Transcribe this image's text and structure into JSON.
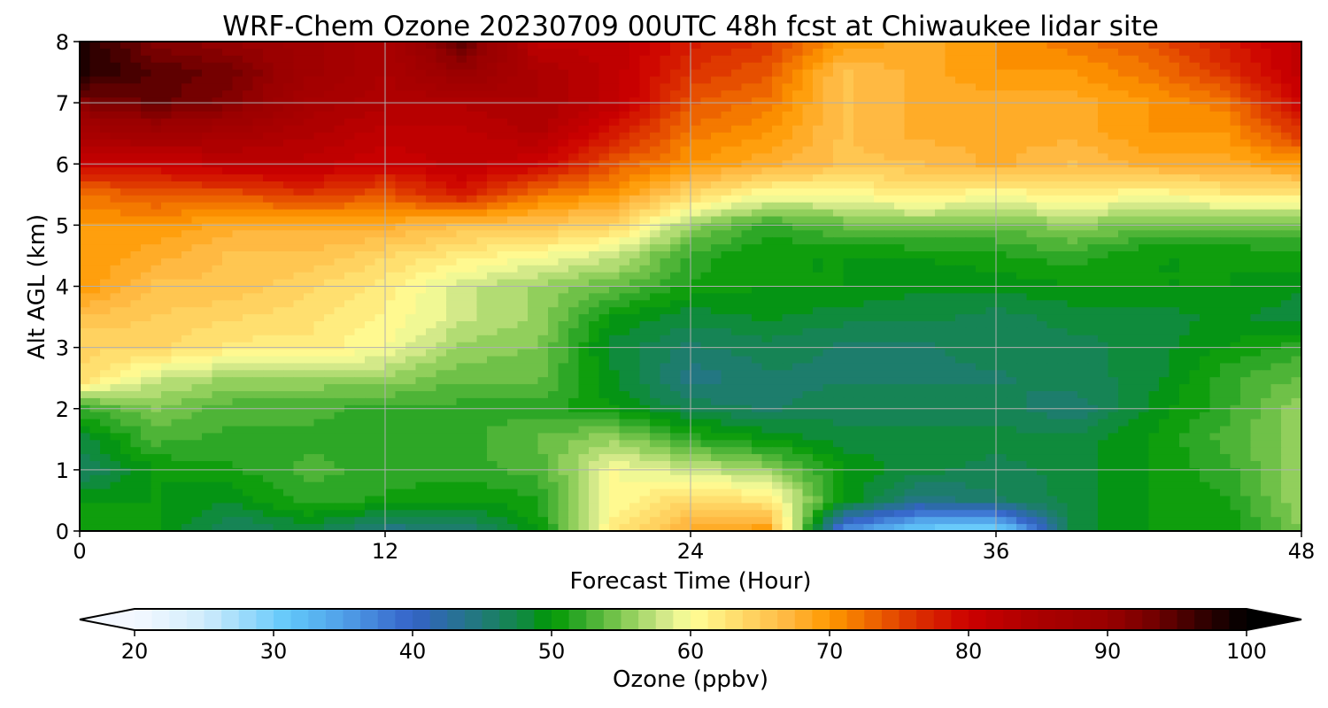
{
  "chart_data": {
    "type": "heatmap",
    "title": "WRF-Chem Ozone  20230709 00UTC 48h fcst at Chiwaukee lidar site",
    "xlabel": "Forecast Time (Hour)",
    "ylabel": "Alt AGL (km)",
    "xlim": [
      0,
      48
    ],
    "ylim": [
      0,
      8
    ],
    "xticks": [
      "0",
      "12",
      "24",
      "36",
      "48"
    ],
    "yticks": [
      "0",
      "1",
      "2",
      "3",
      "4",
      "5",
      "6",
      "7",
      "8"
    ],
    "grid": true,
    "x": [
      0,
      3,
      6,
      9,
      12,
      15,
      18,
      21,
      24,
      27,
      30,
      33,
      36,
      39,
      42,
      45,
      48
    ],
    "y_desc": [
      8,
      7.5,
      7,
      6.5,
      6,
      5.5,
      5,
      4.5,
      4,
      3.5,
      3,
      2.5,
      2,
      1.5,
      1,
      0.5,
      0
    ],
    "z": [
      [
        98,
        92,
        90,
        88,
        85,
        95,
        82,
        82,
        78,
        76,
        70,
        68,
        70,
        72,
        74,
        78,
        82
      ],
      [
        98,
        95,
        93,
        88,
        85,
        90,
        85,
        82,
        76,
        74,
        66,
        68,
        70,
        70,
        72,
        76,
        82
      ],
      [
        92,
        94,
        92,
        86,
        84,
        84,
        85,
        82,
        74,
        72,
        66,
        68,
        68,
        68,
        70,
        72,
        80
      ],
      [
        86,
        88,
        86,
        84,
        82,
        82,
        84,
        78,
        72,
        70,
        66,
        68,
        68,
        68,
        70,
        70,
        76
      ],
      [
        80,
        80,
        82,
        82,
        80,
        82,
        80,
        74,
        70,
        68,
        66,
        66,
        68,
        66,
        68,
        68,
        70
      ],
      [
        72,
        74,
        74,
        76,
        74,
        78,
        72,
        70,
        64,
        60,
        60,
        62,
        60,
        62,
        60,
        62,
        62
      ],
      [
        70,
        70,
        68,
        68,
        68,
        66,
        66,
        64,
        56,
        52,
        54,
        55,
        54,
        56,
        54,
        54,
        54
      ],
      [
        70,
        68,
        66,
        66,
        64,
        62,
        60,
        58,
        52,
        50,
        50,
        50,
        51,
        52,
        50,
        50,
        51
      ],
      [
        70,
        66,
        66,
        64,
        62,
        58,
        56,
        54,
        51,
        50,
        50,
        49,
        49,
        50,
        50,
        50,
        49
      ],
      [
        66,
        65,
        64,
        63,
        61,
        58,
        56,
        50,
        48,
        49,
        48,
        48,
        47,
        48,
        48,
        49,
        48
      ],
      [
        64,
        64,
        62,
        62,
        60,
        56,
        55,
        48,
        46,
        47,
        46,
        46,
        47,
        47,
        48,
        50,
        52
      ],
      [
        64,
        58,
        56,
        56,
        56,
        54,
        54,
        49,
        44,
        46,
        46,
        46,
        46,
        47,
        48,
        52,
        54
      ],
      [
        52,
        55,
        53,
        53,
        52,
        52,
        52,
        50,
        47,
        46,
        47,
        47,
        47,
        45,
        49,
        52,
        56
      ],
      [
        48,
        53,
        52,
        52,
        52,
        52,
        54,
        56,
        52,
        50,
        48,
        48,
        48,
        48,
        50,
        53,
        56
      ],
      [
        46,
        50,
        51,
        53,
        52,
        52,
        53,
        60,
        58,
        56,
        50,
        48,
        47,
        48,
        50,
        52,
        56
      ],
      [
        50,
        50,
        49,
        52,
        51,
        50,
        51,
        60,
        64,
        62,
        50,
        44,
        46,
        48,
        50,
        51,
        56
      ],
      [
        50,
        50,
        46,
        48,
        44,
        45,
        50,
        62,
        68,
        70,
        36,
        30,
        28,
        48,
        50,
        50,
        55
      ]
    ],
    "colorbar": {
      "label": "Ozone  (ppbv)",
      "range": [
        20,
        100
      ],
      "step": 1.25,
      "extend": "both",
      "ticks": [
        "20",
        "30",
        "40",
        "50",
        "60",
        "70",
        "80",
        "90",
        "100"
      ],
      "tick_values": [
        20,
        30,
        40,
        50,
        60,
        70,
        80,
        90,
        100
      ],
      "color_stops": [
        [
          20,
          "#f4f8ff"
        ],
        [
          25,
          "#d0ecfc"
        ],
        [
          31,
          "#62c8fa"
        ],
        [
          35,
          "#50a0e8"
        ],
        [
          40,
          "#3462c8"
        ],
        [
          45,
          "#207a78"
        ],
        [
          48,
          "#108a40"
        ],
        [
          50,
          "#009900"
        ],
        [
          52,
          "#30a828"
        ],
        [
          55,
          "#80c850"
        ],
        [
          58,
          "#d0e888"
        ],
        [
          60,
          "#ffff99"
        ],
        [
          63,
          "#ffe070"
        ],
        [
          67,
          "#ffb840"
        ],
        [
          70,
          "#ff9900"
        ],
        [
          73,
          "#ee6600"
        ],
        [
          76,
          "#dd3300"
        ],
        [
          80,
          "#cc0000"
        ],
        [
          85,
          "#aa0000"
        ],
        [
          90,
          "#990000"
        ],
        [
          93,
          "#770000"
        ],
        [
          97,
          "#300000"
        ],
        [
          100,
          "#000000"
        ]
      ]
    }
  }
}
